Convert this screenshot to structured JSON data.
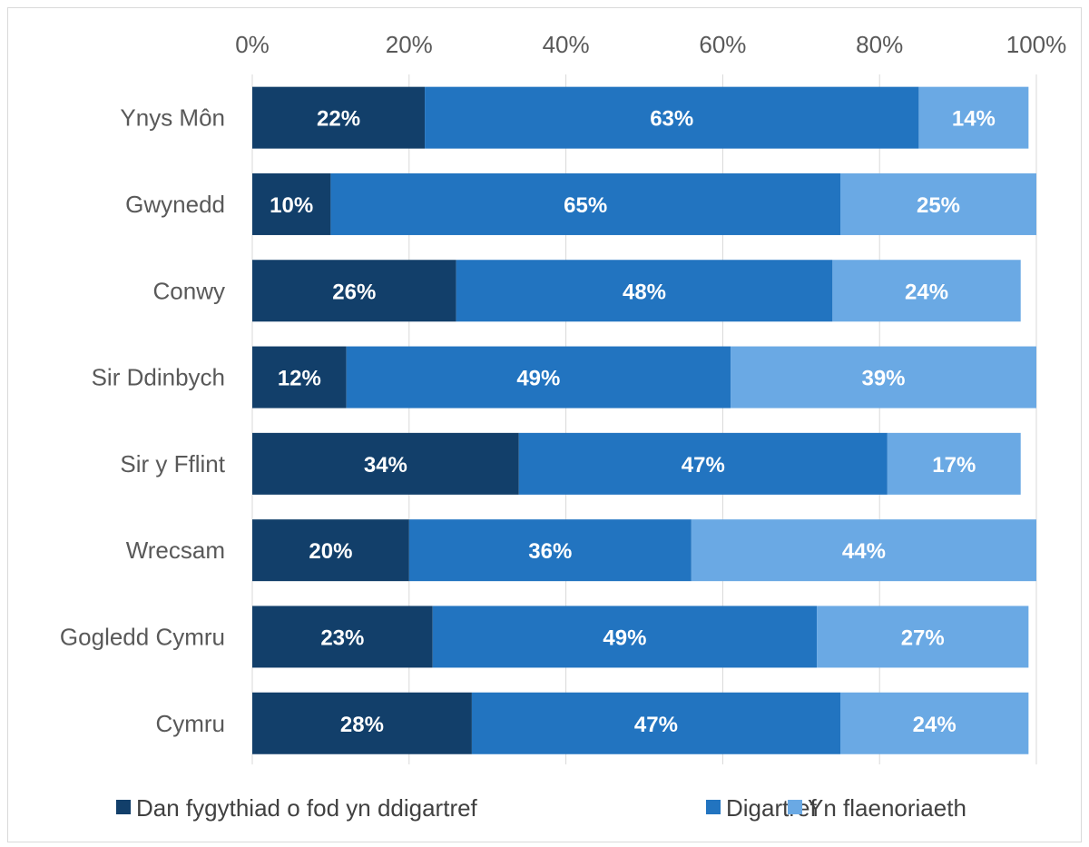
{
  "chart_data": {
    "type": "bar",
    "orientation": "horizontal",
    "stacked": "percent",
    "categories": [
      "Ynys Môn",
      "Gwynedd",
      "Conwy",
      "Sir Ddinbych",
      "Sir y Fflint",
      "Wrecsam",
      "Gogledd Cymru",
      "Cymru"
    ],
    "series": [
      {
        "name": "Dan fygythiad o fod yn ddigartref",
        "color": "#123f6a",
        "values": [
          22,
          10,
          26,
          12,
          34,
          20,
          23,
          28
        ],
        "labels": [
          "22%",
          "10%",
          "26%",
          "12%",
          "34%",
          "20%",
          "23%",
          "28%"
        ]
      },
      {
        "name": "Digartref",
        "color": "#2274c0",
        "values": [
          63,
          65,
          48,
          49,
          47,
          36,
          49,
          47
        ],
        "labels": [
          "63%",
          "65%",
          "48%",
          "49%",
          "47%",
          "36%",
          "49%",
          "47%"
        ]
      },
      {
        "name": "Yn flaenoriaeth",
        "color": "#6aa9e4",
        "values": [
          14,
          25,
          24,
          39,
          17,
          44,
          27,
          24
        ],
        "labels": [
          "14%",
          "25%",
          "24%",
          "39%",
          "17%",
          "44%",
          "27%",
          "24%"
        ]
      }
    ],
    "xlim": [
      0,
      100
    ],
    "xticks": [
      "0%",
      "20%",
      "40%",
      "60%",
      "80%",
      "100%"
    ],
    "axis_position": "top",
    "grid": true,
    "legend_position": "bottom"
  }
}
